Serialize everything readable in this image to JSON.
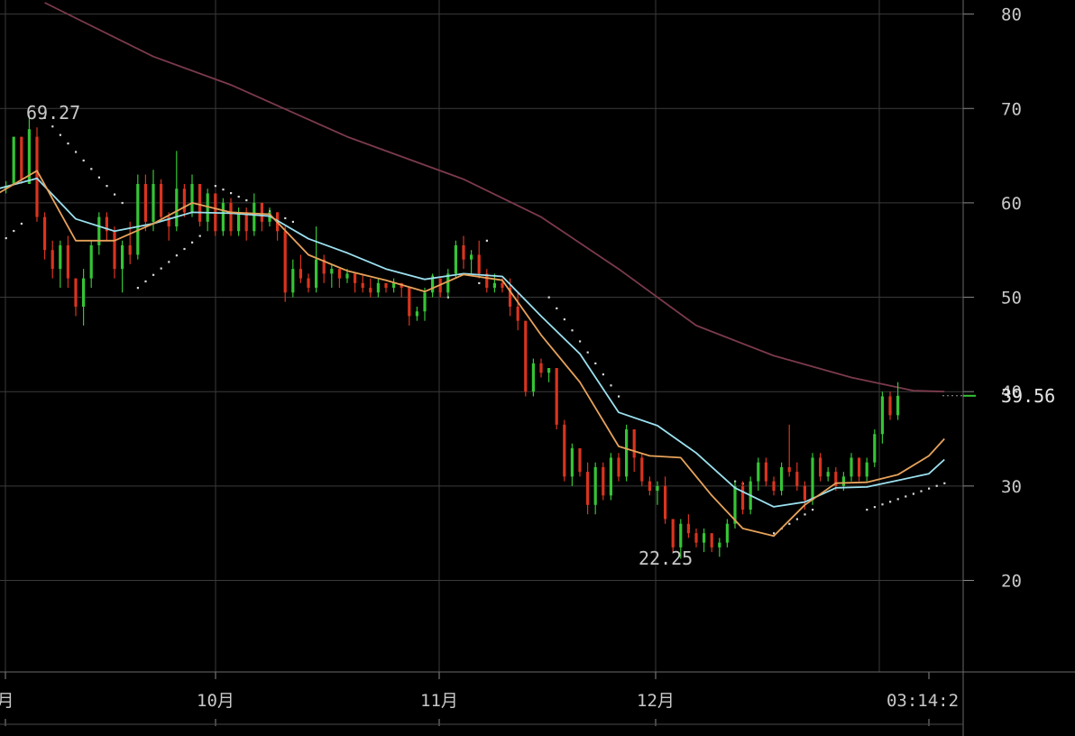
{
  "chart_data": {
    "type": "candlestick",
    "theme": {
      "background": "#000000",
      "grid": "#3a3a3a",
      "text": "#c8c8c8",
      "up": "#35c435",
      "down": "#d9341e",
      "ma_short": "#e6a25a",
      "ma_mid": "#9be0ef",
      "ma_long": "#7b3a4c",
      "sar": "#d8d8d8"
    },
    "y_axis": {
      "ticks": [
        80,
        70,
        60,
        50,
        40,
        30,
        20
      ],
      "ylim": [
        10.3,
        81.3
      ],
      "position": "right"
    },
    "x_axis": {
      "ticks": [
        "月",
        "10月",
        "11月",
        "12月",
        "03:14:2"
      ]
    },
    "annotations": {
      "high": "69.27",
      "low": "22.25",
      "last": "39.56"
    },
    "candles": [
      [
        61.0,
        61.5,
        61.0,
        61.5
      ],
      [
        61.5,
        62.3,
        61.0,
        61.8
      ],
      [
        62.0,
        67.0,
        62.0,
        67.0
      ],
      [
        67.0,
        67.0,
        62.0,
        62.5
      ],
      [
        62.0,
        69.3,
        62.0,
        67.8
      ],
      [
        67.0,
        68.0,
        58.0,
        58.5
      ],
      [
        58.5,
        59.0,
        54.0,
        55.0
      ],
      [
        55.0,
        56.0,
        52.0,
        53.0
      ],
      [
        53.0,
        56.0,
        51.0,
        55.5
      ],
      [
        55.5,
        56.5,
        51.0,
        52.0
      ],
      [
        52.0,
        52.0,
        48.0,
        49.0
      ],
      [
        49.0,
        53.0,
        47.0,
        52.0
      ],
      [
        52.0,
        56.0,
        51.0,
        55.5
      ],
      [
        55.5,
        59.0,
        54.5,
        58.5
      ],
      [
        58.5,
        59.0,
        56.0,
        57.0
      ],
      [
        57.0,
        57.5,
        52.0,
        53.0
      ],
      [
        53.0,
        56.0,
        50.5,
        55.5
      ],
      [
        55.5,
        58.0,
        53.5,
        54.5
      ],
      [
        54.5,
        63.0,
        54.0,
        62.0
      ],
      [
        62.0,
        63.0,
        57.0,
        58.0
      ],
      [
        58.0,
        63.5,
        57.0,
        62.0
      ],
      [
        62.0,
        62.5,
        58.0,
        58.5
      ],
      [
        58.5,
        59.0,
        56.0,
        57.5
      ],
      [
        57.5,
        65.5,
        57.0,
        61.5
      ],
      [
        61.5,
        62.0,
        58.5,
        59.0
      ],
      [
        59.0,
        63.0,
        58.5,
        62.0
      ],
      [
        62.0,
        62.0,
        57.5,
        58.0
      ],
      [
        58.0,
        61.5,
        57.0,
        61.0
      ],
      [
        61.0,
        61.0,
        56.5,
        57.0
      ],
      [
        57.0,
        60.5,
        56.5,
        60.0
      ],
      [
        60.0,
        60.5,
        56.5,
        57.0
      ],
      [
        57.0,
        59.5,
        56.5,
        59.0
      ],
      [
        59.0,
        59.5,
        56.0,
        57.0
      ],
      [
        57.0,
        61.0,
        56.5,
        60.0
      ],
      [
        60.0,
        60.0,
        57.0,
        58.0
      ],
      [
        58.0,
        59.5,
        57.5,
        59.0
      ],
      [
        59.0,
        59.0,
        56.0,
        57.0
      ],
      [
        57.0,
        57.5,
        49.5,
        50.5
      ],
      [
        50.5,
        54.0,
        50.0,
        53.0
      ],
      [
        53.0,
        54.5,
        51.5,
        52.0
      ],
      [
        52.0,
        52.5,
        50.5,
        51.0
      ],
      [
        51.0,
        57.5,
        50.5,
        54.0
      ],
      [
        54.0,
        54.5,
        51.5,
        52.5
      ],
      [
        52.5,
        53.5,
        51.0,
        53.0
      ],
      [
        53.0,
        53.0,
        51.0,
        52.0
      ],
      [
        52.0,
        53.0,
        51.5,
        52.5
      ],
      [
        52.5,
        52.5,
        50.5,
        51.5
      ],
      [
        51.5,
        52.5,
        50.5,
        51.0
      ],
      [
        51.0,
        52.0,
        50.0,
        50.5
      ],
      [
        50.5,
        52.0,
        50.0,
        51.5
      ],
      [
        51.5,
        51.5,
        50.5,
        51.0
      ],
      [
        51.0,
        52.0,
        50.5,
        51.5
      ],
      [
        51.5,
        51.5,
        50.0,
        51.0
      ],
      [
        51.0,
        51.0,
        47.0,
        48.0
      ],
      [
        48.0,
        49.0,
        47.5,
        48.5
      ],
      [
        48.5,
        51.0,
        47.5,
        50.5
      ],
      [
        50.5,
        52.5,
        50.0,
        52.0
      ],
      [
        52.0,
        52.0,
        50.0,
        50.5
      ],
      [
        50.5,
        53.0,
        50.0,
        52.5
      ],
      [
        52.5,
        56.0,
        52.0,
        55.5
      ],
      [
        55.5,
        56.5,
        53.0,
        54.0
      ],
      [
        54.0,
        55.0,
        52.5,
        54.5
      ],
      [
        54.5,
        56.0,
        52.0,
        52.5
      ],
      [
        52.5,
        53.0,
        50.5,
        51.0
      ],
      [
        51.0,
        52.5,
        50.5,
        51.5
      ],
      [
        51.5,
        52.0,
        50.5,
        51.0
      ],
      [
        51.0,
        52.0,
        48.0,
        49.0
      ],
      [
        49.0,
        50.5,
        46.5,
        47.5
      ],
      [
        47.5,
        47.5,
        39.5,
        40.0
      ],
      [
        40.0,
        43.5,
        39.5,
        43.0
      ],
      [
        43.0,
        43.5,
        41.5,
        42.0
      ],
      [
        42.0,
        42.5,
        41.0,
        42.5
      ],
      [
        42.5,
        42.5,
        36.0,
        36.5
      ],
      [
        36.5,
        37.0,
        30.5,
        31.0
      ],
      [
        31.0,
        34.5,
        30.0,
        34.0
      ],
      [
        34.0,
        34.0,
        31.0,
        31.5
      ],
      [
        31.5,
        32.5,
        27.0,
        28.0
      ],
      [
        28.0,
        32.5,
        27.0,
        32.0
      ],
      [
        32.0,
        32.5,
        28.5,
        29.0
      ],
      [
        29.0,
        33.5,
        28.5,
        33.0
      ],
      [
        33.0,
        33.5,
        30.5,
        31.0
      ],
      [
        31.0,
        36.5,
        30.5,
        36.0
      ],
      [
        36.0,
        36.0,
        31.5,
        33.0
      ],
      [
        33.0,
        33.5,
        30.0,
        30.5
      ],
      [
        30.5,
        31.0,
        29.0,
        29.5
      ],
      [
        29.5,
        30.5,
        28.0,
        30.0
      ],
      [
        30.0,
        31.0,
        26.0,
        26.5
      ],
      [
        26.5,
        26.5,
        23.0,
        23.5
      ],
      [
        23.5,
        26.5,
        22.3,
        26.0
      ],
      [
        26.0,
        27.0,
        24.5,
        25.0
      ],
      [
        25.0,
        25.5,
        23.5,
        24.0
      ],
      [
        24.0,
        25.5,
        23.0,
        25.0
      ],
      [
        25.0,
        25.0,
        23.0,
        23.5
      ],
      [
        23.5,
        24.5,
        22.5,
        24.0
      ],
      [
        24.0,
        26.5,
        23.5,
        26.0
      ],
      [
        26.0,
        30.5,
        25.5,
        30.0
      ],
      [
        30.0,
        30.5,
        27.0,
        27.5
      ],
      [
        27.5,
        31.0,
        27.0,
        30.5
      ],
      [
        30.5,
        33.0,
        29.5,
        32.5
      ],
      [
        32.5,
        33.0,
        30.0,
        30.5
      ],
      [
        30.5,
        31.0,
        29.0,
        29.5
      ],
      [
        29.5,
        32.5,
        29.0,
        32.0
      ],
      [
        32.0,
        36.5,
        31.0,
        31.5
      ],
      [
        31.5,
        32.5,
        29.5,
        30.0
      ],
      [
        30.0,
        30.5,
        27.5,
        28.5
      ],
      [
        28.5,
        33.5,
        28.0,
        33.0
      ],
      [
        33.0,
        33.5,
        30.5,
        31.0
      ],
      [
        31.0,
        32.0,
        30.5,
        31.5
      ],
      [
        31.5,
        32.0,
        29.5,
        30.0
      ],
      [
        30.0,
        31.5,
        29.5,
        31.0
      ],
      [
        31.0,
        33.5,
        30.5,
        33.0
      ],
      [
        33.0,
        33.0,
        30.5,
        31.0
      ],
      [
        31.0,
        33.0,
        30.5,
        32.5
      ],
      [
        32.5,
        36.0,
        32.0,
        35.5
      ],
      [
        35.5,
        40.0,
        34.5,
        39.5
      ],
      [
        39.5,
        40.0,
        37.0,
        37.5
      ],
      [
        37.5,
        41.0,
        37.0,
        39.56
      ]
    ],
    "ma_short": [
      [
        0,
        61.0
      ],
      [
        5,
        63.4
      ],
      [
        10,
        56.0
      ],
      [
        15,
        56.0
      ],
      [
        20,
        57.8
      ],
      [
        25,
        60.0
      ],
      [
        30,
        59.0
      ],
      [
        35,
        58.8
      ],
      [
        40,
        54.5
      ],
      [
        45,
        52.8
      ],
      [
        50,
        51.8
      ],
      [
        55,
        50.6
      ],
      [
        60,
        52.4
      ],
      [
        65,
        51.8
      ],
      [
        70,
        46.0
      ],
      [
        75,
        41.0
      ],
      [
        80,
        34.2
      ],
      [
        84,
        33.2
      ],
      [
        88,
        33.0
      ],
      [
        92,
        29.0
      ],
      [
        96,
        25.5
      ],
      [
        100,
        24.7
      ],
      [
        104,
        28.0
      ],
      [
        108,
        30.3
      ],
      [
        112,
        30.4
      ],
      [
        116,
        31.2
      ],
      [
        120,
        33.2
      ],
      [
        122,
        35.0
      ]
    ],
    "ma_mid": [
      [
        0,
        61.5
      ],
      [
        5,
        62.6
      ],
      [
        10,
        58.3
      ],
      [
        15,
        57.0
      ],
      [
        20,
        57.8
      ],
      [
        25,
        59.0
      ],
      [
        30,
        58.9
      ],
      [
        35,
        58.6
      ],
      [
        40,
        56.2
      ],
      [
        45,
        54.7
      ],
      [
        50,
        53.0
      ],
      [
        55,
        51.9
      ],
      [
        60,
        52.5
      ],
      [
        65,
        52.2
      ],
      [
        70,
        48.0
      ],
      [
        75,
        44.0
      ],
      [
        80,
        37.8
      ],
      [
        85,
        36.4
      ],
      [
        90,
        33.5
      ],
      [
        95,
        29.8
      ],
      [
        100,
        27.8
      ],
      [
        104,
        28.3
      ],
      [
        108,
        29.8
      ],
      [
        112,
        29.9
      ],
      [
        116,
        30.6
      ],
      [
        120,
        31.3
      ],
      [
        122,
        32.8
      ]
    ],
    "ma_long": [
      [
        6,
        81.2
      ],
      [
        20,
        75.5
      ],
      [
        30,
        72.5
      ],
      [
        45,
        67.0
      ],
      [
        60,
        62.5
      ],
      [
        70,
        58.5
      ],
      [
        80,
        53.0
      ],
      [
        90,
        47.0
      ],
      [
        100,
        43.8
      ],
      [
        110,
        41.5
      ],
      [
        118,
        40.1
      ],
      [
        122,
        40.0
      ]
    ],
    "sar": [
      [
        0,
        55.5
      ],
      [
        3,
        57.8
      ],
      [
        6,
        69.0
      ],
      [
        16,
        60.0
      ],
      [
        18,
        51.0
      ],
      [
        26,
        56.5
      ],
      [
        28,
        61.8
      ],
      [
        38,
        58.0
      ],
      [
        56,
        52.2
      ],
      [
        58,
        50.0
      ],
      [
        62,
        51.5
      ],
      [
        63,
        56.0
      ],
      [
        71,
        50.0
      ],
      [
        80,
        39.5
      ],
      [
        95,
        30.5
      ],
      [
        97,
        30.0
      ],
      [
        100,
        25.0
      ],
      [
        105,
        27.5
      ],
      [
        112,
        27.5
      ],
      [
        122,
        30.3
      ]
    ]
  }
}
